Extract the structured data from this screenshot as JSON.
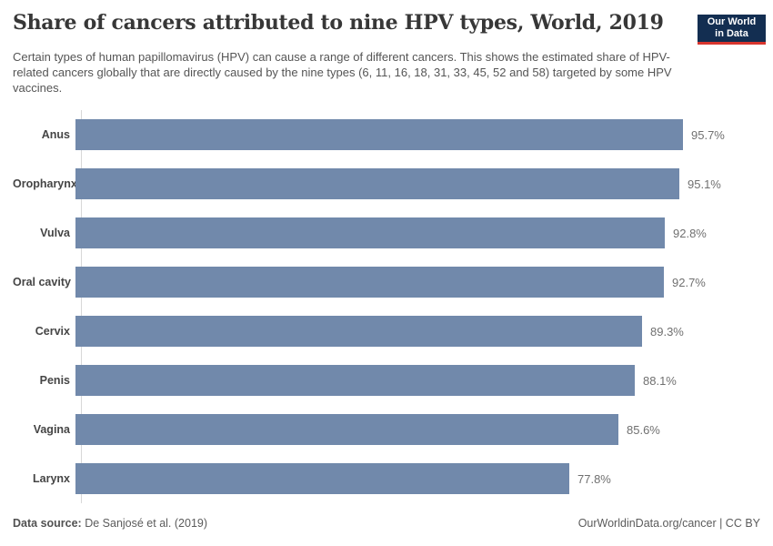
{
  "header": {
    "title": "Share of cancers attributed to nine HPV types, World, 2019",
    "subtitle": "Certain types of human papillomavirus (HPV) can cause a range of different cancers. This shows the estimated share of HPV-related cancers globally that are directly caused by the nine types (6, 11, 16, 18, 31, 33, 45, 52 and 58) targeted by some HPV vaccines.",
    "logo": {
      "line1": "Our World",
      "line2": "in Data"
    }
  },
  "chart_data": {
    "type": "bar",
    "orientation": "horizontal",
    "title": "Share of cancers attributed to nine HPV types, World, 2019",
    "categories": [
      "Anus",
      "Oropharynx",
      "Vulva",
      "Oral cavity",
      "Cervix",
      "Penis",
      "Vagina",
      "Larynx"
    ],
    "values": [
      95.7,
      95.1,
      92.8,
      92.7,
      89.3,
      88.1,
      85.6,
      77.8
    ],
    "value_labels": [
      "95.7%",
      "95.1%",
      "92.8%",
      "92.7%",
      "89.3%",
      "88.1%",
      "85.6%",
      "77.8%"
    ],
    "unit": "%",
    "xlabel": "",
    "ylabel": "",
    "xlim": [
      0,
      100
    ],
    "grid": false,
    "legend": false,
    "bar_color": "#7189ab"
  },
  "footer": {
    "datasource_label": "Data source:",
    "datasource_value": " De Sanjosé et al. (2019)",
    "attribution": "OurWorldinData.org/cancer | CC BY"
  },
  "colors": {
    "bar": "#7189ab",
    "axis_line": "#d8d8d8",
    "logo_background": "#132e51",
    "logo_red_accent": "#d8352e",
    "title_text": "#373737",
    "subtitle_text": "#555555",
    "value_label_text": "#707070"
  }
}
